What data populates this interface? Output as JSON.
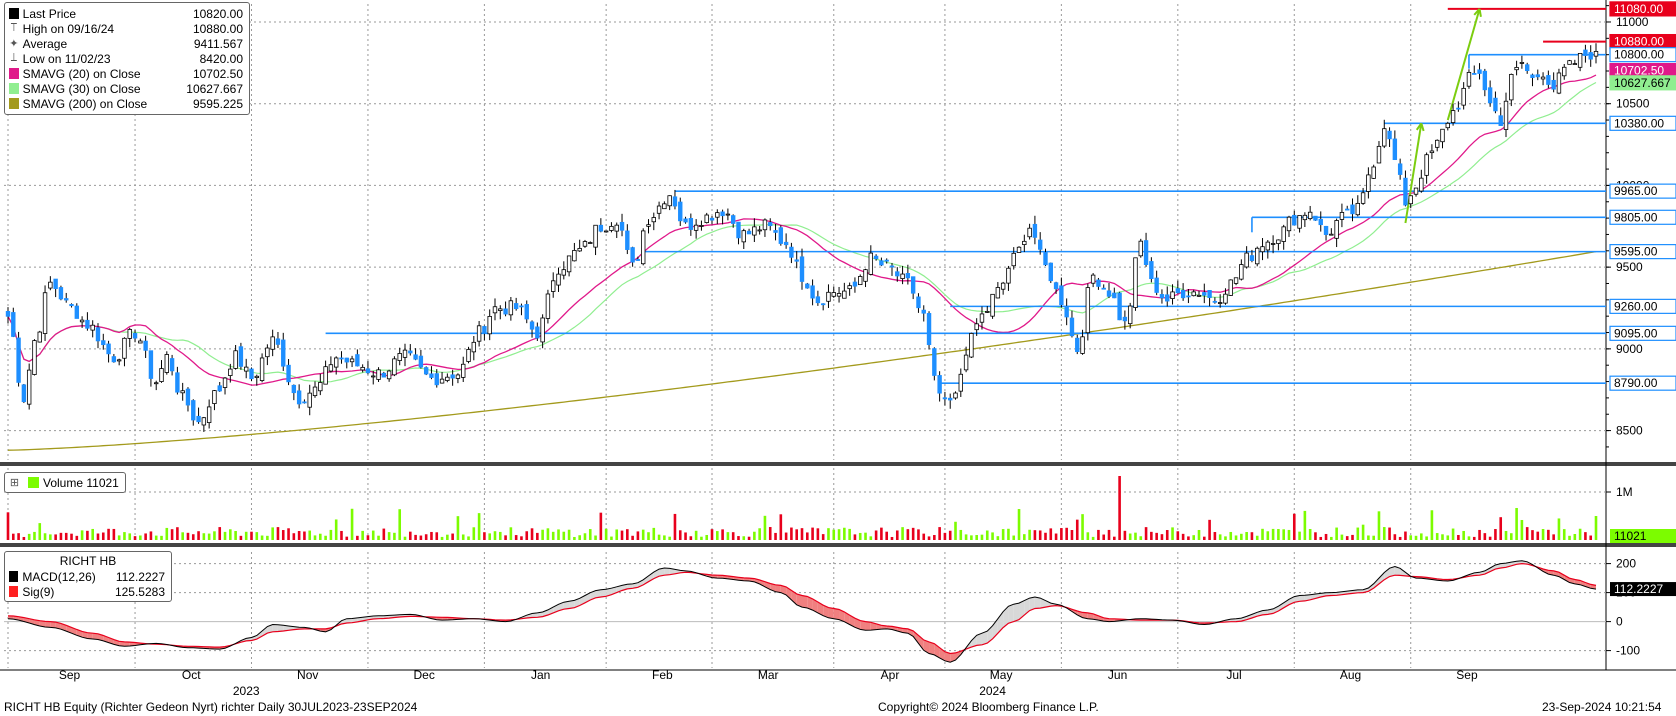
{
  "legend_price": [
    {
      "glyph": "box",
      "color": "#000000",
      "label": "Last Price",
      "value": "10820.00"
    },
    {
      "glyph": "high",
      "color": "#555555",
      "label": "High on 09/16/24",
      "value": "10880.00"
    },
    {
      "glyph": "avg",
      "color": "#555555",
      "label": "Average",
      "value": "9411.567"
    },
    {
      "glyph": "low",
      "color": "#555555",
      "label": "Low on 11/02/23",
      "value": "8420.00"
    },
    {
      "glyph": "box",
      "color": "#e0198a",
      "label": "SMAVG (20)  on Close",
      "value": "10702.50"
    },
    {
      "glyph": "box",
      "color": "#90ee90",
      "label": "SMAVG (30)  on Close",
      "value": "10627.667"
    },
    {
      "glyph": "box",
      "color": "#a39a1c",
      "label": "SMAVG (200)  on Close",
      "value": "9595.225"
    }
  ],
  "legend_volume": {
    "label": "Volume",
    "value": "11021",
    "color": "#7cfc00"
  },
  "legend_macd": {
    "title": "RICHT HB",
    "items": [
      {
        "color": "#000000",
        "label": "MACD(12,26)",
        "value": "112.2227"
      },
      {
        "color": "#ff2020",
        "label": "Sig(9)",
        "value": "125.5283"
      }
    ]
  },
  "footer": {
    "left": "RICHT HB Equity (Richter Gedeon Nyrt) richter  Daily 30JUL2023-23SEP2024",
    "center": "Copyright© 2024 Bloomberg Finance L.P.",
    "right": "23-Sep-2024 10:21:54"
  },
  "colors": {
    "up": "#ffffff",
    "down": "#1e8fff",
    "sma20": "#e0198a",
    "sma30": "#90ee90",
    "sma200": "#a39a1c",
    "level": "#1e8fff",
    "highline": "#e8001c",
    "arrow": "#7ccd10",
    "volup": "#7cfc00",
    "voldown": "#e8001c"
  },
  "chart_data": [
    {
      "type": "candlestick",
      "title": "RICHT HB Equity",
      "x_months": [
        "Sep",
        "Oct",
        "Nov",
        "Dec",
        "Jan",
        "Feb",
        "Mar",
        "Apr",
        "May",
        "Jun",
        "Jul",
        "Aug",
        "Sep"
      ],
      "x_years": [
        "2023",
        "2024"
      ],
      "y_ticks": [
        8500,
        9000,
        9500,
        10000,
        10500,
        11000
      ],
      "ylim": [
        8320,
        11110
      ],
      "close_anchors": [
        [
          0,
          9200
        ],
        [
          3,
          8700
        ],
        [
          5,
          9050
        ],
        [
          8,
          9400
        ],
        [
          12,
          9250
        ],
        [
          15,
          9150
        ],
        [
          20,
          8950
        ],
        [
          24,
          9100
        ],
        [
          28,
          8800
        ],
        [
          30,
          8950
        ],
        [
          33,
          8700
        ],
        [
          36,
          8550
        ],
        [
          39,
          8720
        ],
        [
          43,
          8950
        ],
        [
          46,
          8820
        ],
        [
          50,
          9050
        ],
        [
          55,
          8700
        ],
        [
          58,
          8750
        ],
        [
          62,
          8950
        ],
        [
          66,
          8900
        ],
        [
          70,
          8850
        ],
        [
          75,
          8950
        ],
        [
          80,
          8820
        ],
        [
          85,
          8850
        ],
        [
          89,
          9100
        ],
        [
          92,
          9250
        ],
        [
          96,
          9250
        ],
        [
          100,
          9100
        ],
        [
          104,
          9500
        ],
        [
          108,
          9600
        ],
        [
          112,
          9750
        ],
        [
          115,
          9800
        ],
        [
          118,
          9500
        ],
        [
          121,
          9800
        ],
        [
          125,
          9950
        ],
        [
          128,
          9750
        ],
        [
          131,
          9800
        ],
        [
          135,
          9850
        ],
        [
          139,
          9700
        ],
        [
          143,
          9750
        ],
        [
          147,
          9650
        ],
        [
          150,
          9450
        ],
        [
          153,
          9300
        ],
        [
          156,
          9350
        ],
        [
          159,
          9350
        ],
        [
          163,
          9550
        ],
        [
          166,
          9500
        ],
        [
          170,
          9400
        ],
        [
          173,
          9200
        ],
        [
          175,
          8800
        ],
        [
          177,
          8650
        ],
        [
          179,
          8700
        ],
        [
          181,
          9000
        ],
        [
          184,
          9200
        ],
        [
          187,
          9350
        ],
        [
          190,
          9550
        ],
        [
          193,
          9750
        ],
        [
          196,
          9500
        ],
        [
          199,
          9300
        ],
        [
          202,
          9000
        ],
        [
          205,
          9450
        ],
        [
          208,
          9350
        ],
        [
          211,
          9150
        ],
        [
          214,
          9650
        ],
        [
          216,
          9400
        ],
        [
          219,
          9300
        ],
        [
          222,
          9350
        ],
        [
          225,
          9350
        ],
        [
          228,
          9300
        ],
        [
          231,
          9400
        ],
        [
          234,
          9550
        ],
        [
          237,
          9650
        ],
        [
          240,
          9700
        ],
        [
          243,
          9800
        ],
        [
          246,
          9850
        ],
        [
          249,
          9700
        ],
        [
          252,
          9800
        ],
        [
          255,
          9850
        ],
        [
          258,
          10150
        ],
        [
          260,
          10380
        ],
        [
          262,
          10150
        ],
        [
          264,
          9900
        ],
        [
          266,
          10000
        ],
        [
          268,
          10150
        ],
        [
          270,
          10250
        ],
        [
          272,
          10400
        ],
        [
          274,
          10500
        ],
        [
          276,
          10650
        ],
        [
          278,
          10700
        ],
        [
          280,
          10500
        ],
        [
          282,
          10400
        ],
        [
          284,
          10650
        ],
        [
          286,
          10750
        ],
        [
          288,
          10650
        ],
        [
          290,
          10700
        ],
        [
          292,
          10600
        ],
        [
          294,
          10700
        ],
        [
          296,
          10750
        ],
        [
          298,
          10800
        ],
        [
          300,
          10820
        ]
      ],
      "levels": [
        11080,
        10880,
        10800,
        10380,
        9965,
        9805,
        9595,
        9260,
        9095,
        8790
      ],
      "right_labels": [
        "11080.00",
        "10880.00",
        "10800.00",
        "10702.50",
        "10627.667",
        "10380.00",
        "9965.00",
        "9805.00",
        "9595.00",
        "9260.00",
        "9095.00",
        "8790.00"
      ],
      "last_price": 10820
    },
    {
      "type": "bar",
      "title": "Volume",
      "y_ticks": [
        "1M"
      ],
      "volume_spike_index": 210,
      "last_value": "11021"
    },
    {
      "type": "area",
      "title": "RICHT HB",
      "y_ticks": [
        200,
        100,
        0,
        -100
      ],
      "ylim": [
        -160,
        240
      ],
      "macd_anchors": [
        [
          0,
          10
        ],
        [
          8,
          -20
        ],
        [
          16,
          -60
        ],
        [
          22,
          -85
        ],
        [
          28,
          -75
        ],
        [
          34,
          -90
        ],
        [
          40,
          -95
        ],
        [
          46,
          -55
        ],
        [
          50,
          -10
        ],
        [
          56,
          -20
        ],
        [
          60,
          -35
        ],
        [
          64,
          10
        ],
        [
          70,
          20
        ],
        [
          76,
          25
        ],
        [
          82,
          5
        ],
        [
          88,
          10
        ],
        [
          94,
          0
        ],
        [
          100,
          30
        ],
        [
          106,
          70
        ],
        [
          112,
          110
        ],
        [
          118,
          130
        ],
        [
          124,
          185
        ],
        [
          128,
          175
        ],
        [
          134,
          150
        ],
        [
          140,
          140
        ],
        [
          146,
          100
        ],
        [
          150,
          50
        ],
        [
          156,
          10
        ],
        [
          162,
          -30
        ],
        [
          166,
          -25
        ],
        [
          170,
          -40
        ],
        [
          174,
          -110
        ],
        [
          178,
          -140
        ],
        [
          184,
          -40
        ],
        [
          190,
          60
        ],
        [
          194,
          85
        ],
        [
          198,
          60
        ],
        [
          204,
          10
        ],
        [
          208,
          0
        ],
        [
          214,
          10
        ],
        [
          220,
          5
        ],
        [
          226,
          -10
        ],
        [
          232,
          10
        ],
        [
          238,
          40
        ],
        [
          244,
          90
        ],
        [
          250,
          100
        ],
        [
          256,
          110
        ],
        [
          262,
          190
        ],
        [
          266,
          150
        ],
        [
          272,
          140
        ],
        [
          278,
          170
        ],
        [
          282,
          200
        ],
        [
          286,
          210
        ],
        [
          292,
          160
        ],
        [
          296,
          130
        ],
        [
          300,
          112
        ]
      ],
      "signal_anchors": [
        [
          0,
          20
        ],
        [
          8,
          0
        ],
        [
          16,
          -40
        ],
        [
          22,
          -70
        ],
        [
          28,
          -78
        ],
        [
          34,
          -85
        ],
        [
          40,
          -88
        ],
        [
          46,
          -65
        ],
        [
          50,
          -35
        ],
        [
          56,
          -25
        ],
        [
          60,
          -25
        ],
        [
          64,
          -5
        ],
        [
          70,
          10
        ],
        [
          76,
          18
        ],
        [
          82,
          15
        ],
        [
          88,
          10
        ],
        [
          94,
          5
        ],
        [
          100,
          15
        ],
        [
          106,
          45
        ],
        [
          112,
          85
        ],
        [
          118,
          115
        ],
        [
          124,
          160
        ],
        [
          128,
          170
        ],
        [
          134,
          160
        ],
        [
          140,
          150
        ],
        [
          146,
          125
        ],
        [
          150,
          90
        ],
        [
          156,
          45
        ],
        [
          162,
          0
        ],
        [
          166,
          -15
        ],
        [
          170,
          -25
        ],
        [
          174,
          -70
        ],
        [
          178,
          -110
        ],
        [
          184,
          -80
        ],
        [
          190,
          0
        ],
        [
          194,
          45
        ],
        [
          198,
          55
        ],
        [
          204,
          30
        ],
        [
          208,
          10
        ],
        [
          214,
          5
        ],
        [
          220,
          5
        ],
        [
          226,
          -5
        ],
        [
          232,
          0
        ],
        [
          238,
          25
        ],
        [
          244,
          70
        ],
        [
          250,
          90
        ],
        [
          256,
          100
        ],
        [
          262,
          160
        ],
        [
          266,
          155
        ],
        [
          272,
          145
        ],
        [
          278,
          160
        ],
        [
          282,
          185
        ],
        [
          286,
          200
        ],
        [
          292,
          175
        ],
        [
          296,
          145
        ],
        [
          300,
          125
        ]
      ],
      "macd": "112.2227",
      "signal": "125.5283"
    }
  ]
}
